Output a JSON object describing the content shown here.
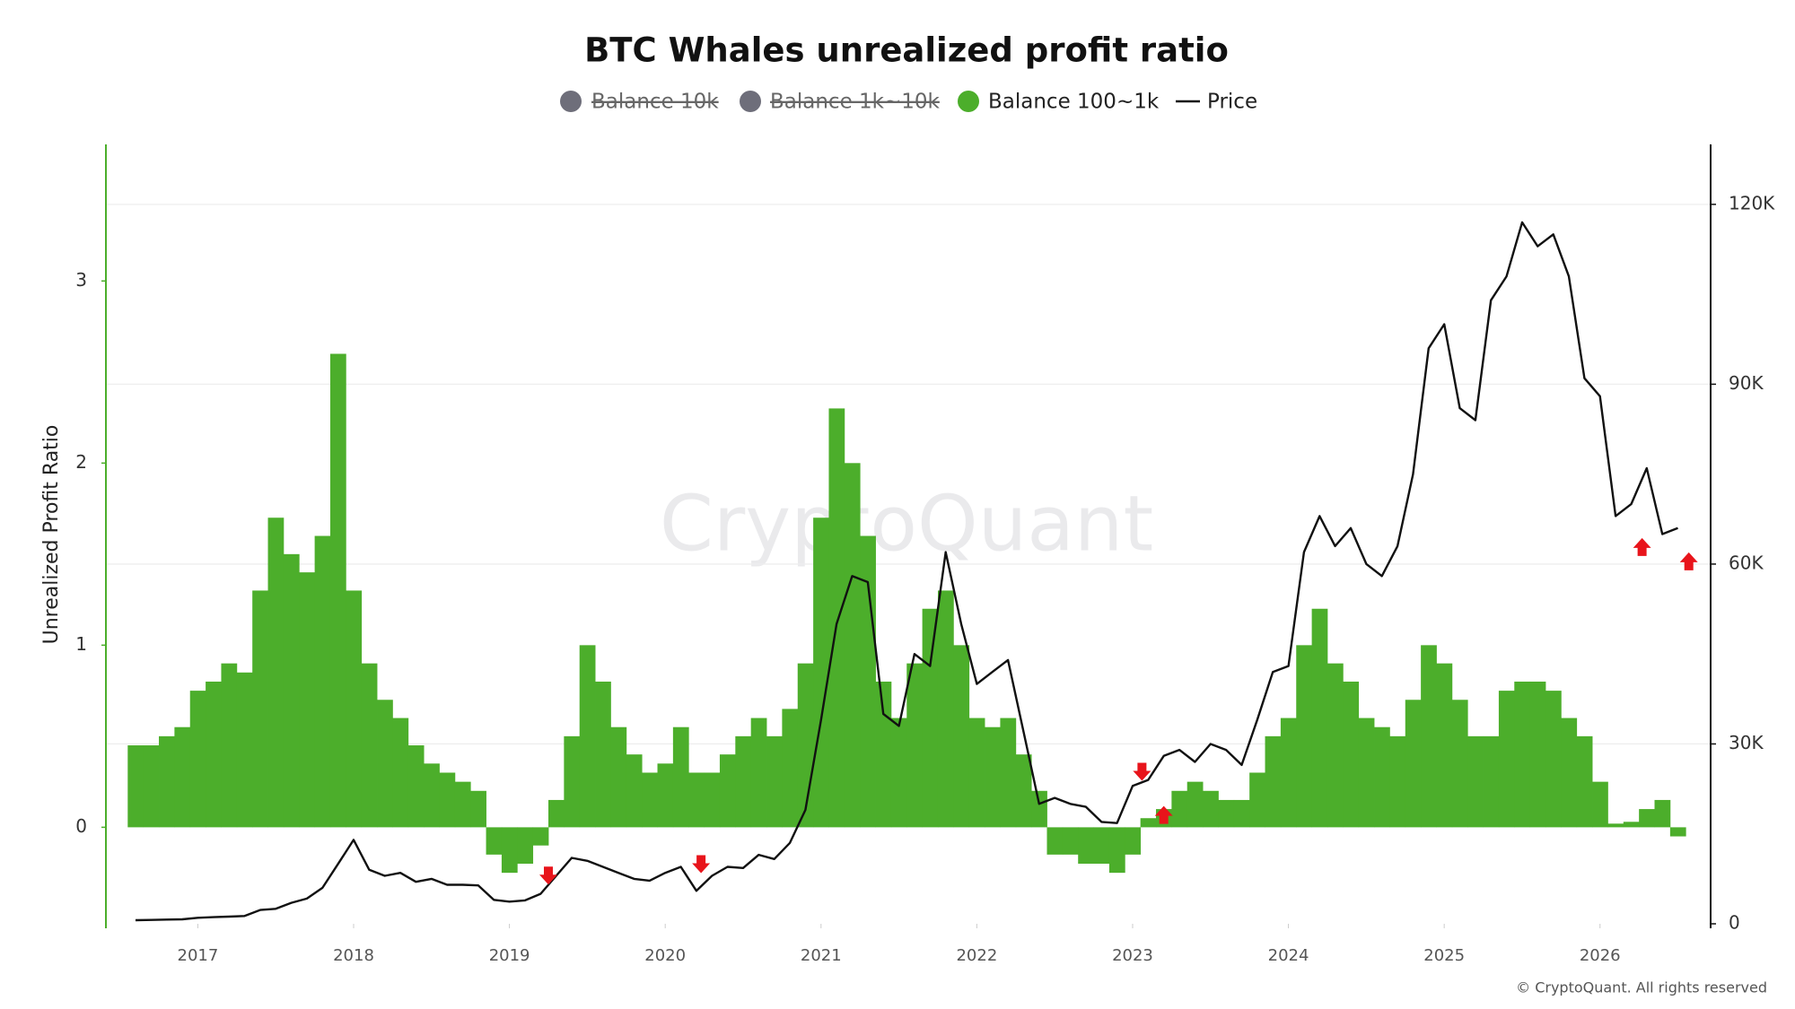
{
  "chart_data": {
    "type": "bar",
    "title": "BTC Whales unrealized profit ratio",
    "ylabel": "Unrealized Profit Ratio",
    "watermark": "CryptoQuant",
    "credit": "© CryptoQuant. All rights reserved",
    "xlim": [
      2016.41,
      2026.71
    ],
    "xticks": [
      2017,
      2018,
      2019,
      2020,
      2021,
      2022,
      2023,
      2024,
      2025,
      2026
    ],
    "ylim": [
      -0.53,
      3.75
    ],
    "yticks": [
      0,
      1,
      2,
      3
    ],
    "y2lim": [
      0,
      130000
    ],
    "y2ticks": [
      0,
      {
        "value": 30000,
        "label": "30K"
      },
      {
        "value": 60000,
        "label": "60K"
      },
      {
        "value": 90000,
        "label": "90K"
      },
      {
        "value": 120000,
        "label": "120K"
      }
    ],
    "grid": "y2",
    "x": [
      2016.6,
      2016.7,
      2016.8,
      2016.9,
      2017.0,
      2017.1,
      2017.2,
      2017.3,
      2017.4,
      2017.5,
      2017.6,
      2017.7,
      2017.8,
      2017.9,
      2018.0,
      2018.1,
      2018.2,
      2018.3,
      2018.4,
      2018.5,
      2018.6,
      2018.7,
      2018.8,
      2018.9,
      2019.0,
      2019.1,
      2019.2,
      2019.3,
      2019.4,
      2019.5,
      2019.6,
      2019.7,
      2019.8,
      2019.9,
      2020.0,
      2020.1,
      2020.2,
      2020.3,
      2020.4,
      2020.5,
      2020.6,
      2020.7,
      2020.8,
      2020.9,
      2021.0,
      2021.1,
      2021.2,
      2021.3,
      2021.4,
      2021.5,
      2021.6,
      2021.7,
      2021.8,
      2021.9,
      2022.0,
      2022.1,
      2022.2,
      2022.3,
      2022.4,
      2022.5,
      2022.6,
      2022.7,
      2022.8,
      2022.9,
      2023.0,
      2023.1,
      2023.2,
      2023.3,
      2023.4,
      2023.5,
      2023.6,
      2023.7,
      2023.8,
      2023.9,
      2024.0,
      2024.1,
      2024.2,
      2024.3,
      2024.4,
      2024.5,
      2024.6,
      2024.7,
      2024.8,
      2024.9,
      2025.0,
      2025.1,
      2025.2,
      2025.3,
      2025.4,
      2025.5,
      2025.6,
      2025.7,
      2025.8,
      2025.9,
      2026.0,
      2026.1,
      2026.2,
      2026.3,
      2026.4,
      2026.5
    ],
    "series": [
      {
        "name": "Balance 10k",
        "color": "#6e6e7a",
        "hidden": true
      },
      {
        "name": "Balance 1k~10k",
        "color": "#6e6e7a",
        "hidden": true
      },
      {
        "name": "Balance 100~1k",
        "color": "#4cae2b",
        "axis": "y",
        "values": [
          0.45,
          0.45,
          0.5,
          0.55,
          0.75,
          0.8,
          0.9,
          0.85,
          1.3,
          1.7,
          1.5,
          1.4,
          1.6,
          2.6,
          1.3,
          0.9,
          0.7,
          0.6,
          0.45,
          0.35,
          0.3,
          0.25,
          0.2,
          -0.15,
          -0.25,
          -0.2,
          -0.1,
          0.15,
          0.5,
          1.0,
          0.8,
          0.55,
          0.4,
          0.3,
          0.35,
          0.55,
          0.3,
          0.3,
          0.4,
          0.5,
          0.6,
          0.5,
          0.65,
          0.9,
          1.7,
          2.3,
          2.0,
          1.6,
          0.8,
          0.6,
          0.9,
          1.2,
          1.3,
          1.0,
          0.6,
          0.55,
          0.6,
          0.4,
          0.2,
          -0.15,
          -0.15,
          -0.2,
          -0.2,
          -0.25,
          -0.15,
          0.05,
          0.1,
          0.2,
          0.25,
          0.2,
          0.15,
          0.15,
          0.3,
          0.5,
          0.6,
          1.0,
          1.2,
          0.9,
          0.8,
          0.6,
          0.55,
          0.5,
          0.7,
          1.0,
          0.9,
          0.7,
          0.5,
          0.5,
          0.75,
          0.8,
          0.8,
          0.75,
          0.6,
          0.5,
          0.25,
          0.02,
          0.03,
          0.1,
          0.15,
          -0.05
        ]
      },
      {
        "name": "Price",
        "color": "#111111",
        "type": "line",
        "axis": "y2",
        "values": [
          600,
          650,
          700,
          750,
          1000,
          1100,
          1200,
          1300,
          2300,
          2500,
          3500,
          4200,
          6000,
          10000,
          14000,
          9000,
          8000,
          8500,
          7000,
          7500,
          6500,
          6500,
          6400,
          4000,
          3700,
          3900,
          5000,
          8000,
          11000,
          10500,
          9500,
          8500,
          7500,
          7200,
          8500,
          9500,
          5500,
          8000,
          9500,
          9300,
          11500,
          10800,
          13500,
          19000,
          34000,
          50000,
          58000,
          57000,
          35000,
          33000,
          45000,
          43000,
          62000,
          50000,
          40000,
          42000,
          44000,
          32000,
          20000,
          21000,
          20000,
          19500,
          17000,
          16800,
          23000,
          24000,
          28000,
          29000,
          27000,
          30000,
          29000,
          26500,
          34000,
          42000,
          43000,
          62000,
          68000,
          63000,
          66000,
          60000,
          58000,
          63000,
          75000,
          96000,
          100000,
          86000,
          84000,
          104000,
          108000,
          117000,
          113000,
          115000,
          108000,
          91000,
          88000,
          68000,
          70000,
          76000,
          65000,
          66000
        ]
      }
    ],
    "arrows": [
      {
        "x": 2019.25,
        "y": 7900,
        "direction": "down"
      },
      {
        "x": 2020.23,
        "y": 9800,
        "direction": "down"
      },
      {
        "x": 2023.06,
        "y": 25200,
        "direction": "down"
      },
      {
        "x": 2023.2,
        "y": 18300,
        "direction": "up"
      },
      {
        "x": 2026.27,
        "y": 63000,
        "direction": "up"
      },
      {
        "x": 2026.57,
        "y": 60600,
        "direction": "up"
      }
    ],
    "arrow_color": "#e8141b"
  }
}
